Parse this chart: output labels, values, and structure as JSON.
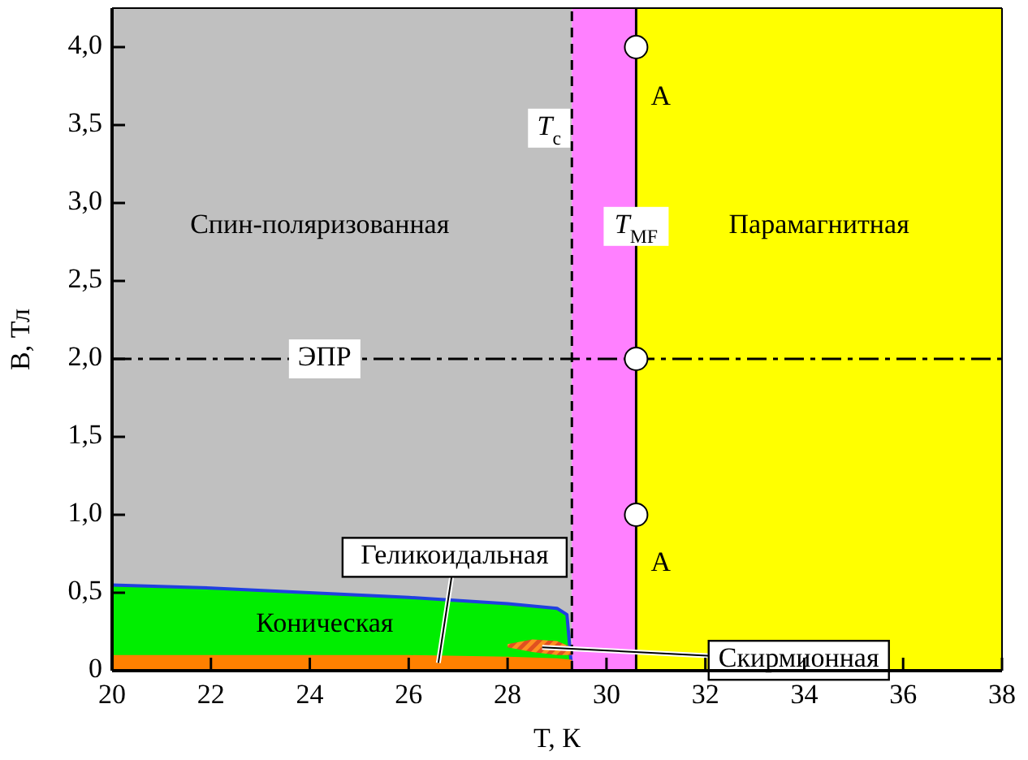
{
  "chart_data": {
    "type": "area",
    "xlabel": "T, К",
    "ylabel": "B, Тл",
    "xlim": [
      20,
      38
    ],
    "xticks": [
      20,
      22,
      24,
      26,
      28,
      30,
      32,
      34,
      36,
      38
    ],
    "ylim": [
      0,
      4.25
    ],
    "yticks": [
      0,
      {
        "value": 0.5,
        "label": "0,5"
      },
      {
        "value": 1,
        "label": "1,0"
      },
      {
        "value": 1.5,
        "label": "1,5"
      },
      {
        "value": 2,
        "label": "2,0"
      },
      {
        "value": 2.5,
        "label": "2,5"
      },
      {
        "value": 3,
        "label": "3,0"
      },
      {
        "value": 3.5,
        "label": "3,5"
      },
      {
        "value": 4,
        "label": "4,0"
      }
    ],
    "grid": false,
    "bands": [
      {
        "axis": "x",
        "from": 20,
        "to": 29.3,
        "color": "#c0c0c0"
      },
      {
        "axis": "x",
        "from": 29.3,
        "to": 30.6,
        "color": "#ff80ff"
      },
      {
        "axis": "x",
        "from": 30.6,
        "to": 38,
        "color": "#ffff00"
      }
    ],
    "ref_lines": [
      {
        "axis": "x",
        "value": 29.3,
        "label": "T$_{c}$",
        "line_style": "dashed"
      },
      {
        "axis": "x",
        "value": 30.6,
        "label": "T$_{MF}$",
        "line_style": "solid"
      },
      {
        "axis": "y",
        "value": 2,
        "label": "ЭПР",
        "line_style": "dashdot"
      }
    ],
    "series": [
      {
        "color": "#00ee00",
        "x": [
          20,
          22,
          24,
          26,
          28,
          29,
          29.2,
          29.3
        ],
        "values": [
          0.55,
          0.53,
          0.5,
          0.47,
          0.43,
          0.4,
          0.36,
          0
        ]
      },
      {
        "color": "#ff8000",
        "x": [
          20,
          22,
          24,
          26,
          28,
          29,
          29.3
        ],
        "values": [
          0.1,
          0.1,
          0.1,
          0.1,
          0.09,
          0.08,
          0.07
        ]
      },
      {
        "type": "scatter",
        "color": "#ffffff",
        "marker": "circle",
        "x": [
          30.6,
          30.6,
          30.6
        ],
        "values": [
          4,
          2,
          1
        ]
      }
    ],
    "annotations": [
      "Спин-поляризованная",
      "Парамагнитная",
      "Коническая",
      "Геликоидальная",
      "Скирмионная",
      "А",
      "А"
    ]
  }
}
